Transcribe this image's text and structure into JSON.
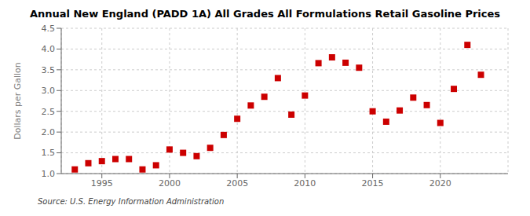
{
  "chart_data": {
    "type": "scatter",
    "title": "Annual New England (PADD 1A) All Grades All Formulations Retail Gasoline Prices",
    "y_label": "Dollars per Gallon",
    "annotations": [
      "Source: U.S. Energy Information Administration"
    ],
    "x": [
      1993,
      1994,
      1995,
      1996,
      1997,
      1998,
      1999,
      2000,
      2001,
      2002,
      2003,
      2004,
      2005,
      2006,
      2007,
      2008,
      2009,
      2010,
      2011,
      2012,
      2013,
      2014,
      2015,
      2016,
      2017,
      2018,
      2019,
      2020,
      2021,
      2022,
      2023
    ],
    "values": [
      1.1,
      1.25,
      1.3,
      1.35,
      1.35,
      1.1,
      1.2,
      1.58,
      1.5,
      1.42,
      1.62,
      1.93,
      2.32,
      2.64,
      2.85,
      3.3,
      2.42,
      2.88,
      3.66,
      3.8,
      3.67,
      3.55,
      2.5,
      2.25,
      2.52,
      2.83,
      2.65,
      2.22,
      3.04,
      4.1,
      3.38
    ],
    "color": "#cc0000",
    "marker": "square",
    "xlim": [
      1992,
      2025
    ],
    "ylim": [
      1.0,
      4.5
    ],
    "xticks": [
      1995,
      2000,
      2005,
      2010,
      2015,
      2020
    ],
    "yticks": [
      {
        "value": 1.0,
        "label": "1.0"
      },
      1.5,
      {
        "value": 2.0,
        "label": "2.0"
      },
      2.5,
      {
        "value": 3.0,
        "label": "3.0"
      },
      3.5,
      {
        "value": 4.0,
        "label": "4.0"
      },
      4.5
    ],
    "grid": true
  }
}
